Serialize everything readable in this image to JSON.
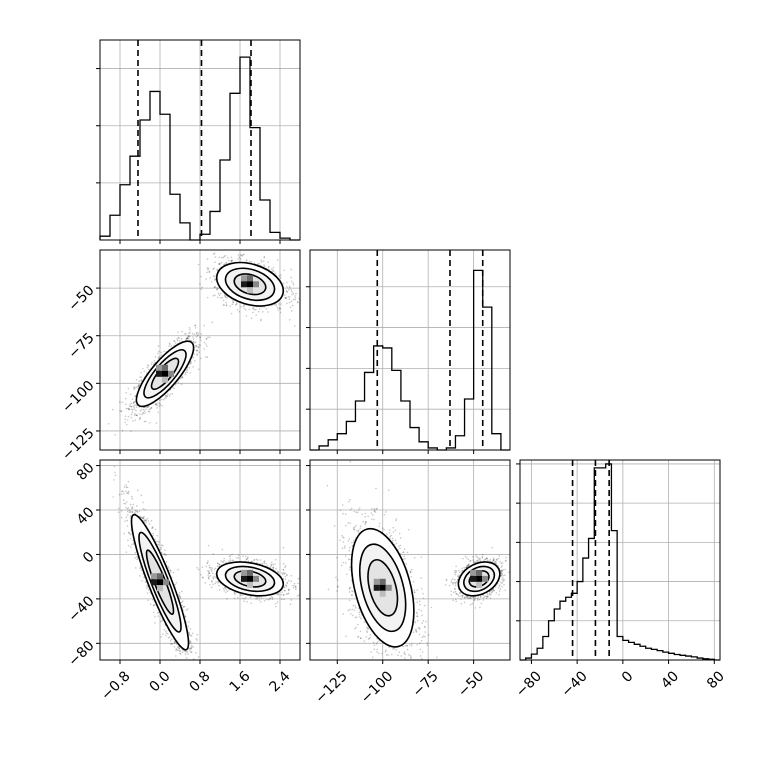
{
  "chart_data": {
    "type": "corner",
    "grid": true,
    "panels": [
      {
        "id": "hist-p0",
        "type": "histogram",
        "xlim": [
          -1.2,
          2.8
        ],
        "ylim": [
          0,
          0.105
        ],
        "bin_edges": [
          -1.2,
          -1.0,
          -0.8,
          -0.6,
          -0.4,
          -0.2,
          0.0,
          0.2,
          0.4,
          0.6,
          0.8,
          1.0,
          1.2,
          1.4,
          1.6,
          1.8,
          2.0,
          2.2,
          2.4,
          2.6,
          2.8
        ],
        "counts": [
          0.002,
          0.013,
          0.029,
          0.044,
          0.063,
          0.078,
          0.066,
          0.024,
          0.009,
          0.0,
          0.003,
          0.015,
          0.042,
          0.077,
          0.096,
          0.059,
          0.021,
          0.004,
          0.001,
          0.0
        ],
        "quantile_lines": [
          -0.44,
          0.83,
          1.82
        ]
      },
      {
        "id": "scatter-p0-p1",
        "type": "density",
        "xlim": [
          -1.2,
          2.8
        ],
        "ylim": [
          -135,
          -30
        ],
        "clusters": [
          {
            "center": [
              0.1,
              -95
            ],
            "spread": [
              0.3,
              9
            ],
            "corr": 0.8,
            "n": 1800,
            "contours": [
              {
                "scale": 1.0,
                "rx": 0.37,
                "ry": 12
              },
              {
                "scale": 0.7,
                "rx": 0.22,
                "ry": 6
              },
              {
                "scale": 0.3,
                "rx": 0.1,
                "ry": 3
              }
            ]
          },
          {
            "center": [
              1.8,
              -48
            ],
            "spread": [
              0.35,
              6
            ],
            "corr": -0.3,
            "n": 1500,
            "contours": [
              {
                "scale": 1.0,
                "rx": 0.5,
                "ry": 9
              },
              {
                "scale": 0.7,
                "rx": 0.37,
                "ry": 7
              },
              {
                "scale": 0.3,
                "rx": 0.22,
                "ry": 4.5
              }
            ]
          }
        ]
      },
      {
        "id": "hist-p1",
        "type": "histogram",
        "xlim": [
          -140,
          -30
        ],
        "ylim": [
          0,
          0.098
        ],
        "bin_edges": [
          -140,
          -135,
          -130,
          -125,
          -120,
          -115,
          -110,
          -105,
          -100,
          -95,
          -90,
          -85,
          -80,
          -75,
          -70,
          -65,
          -60,
          -55,
          -50,
          -45,
          -40,
          -35,
          -30
        ],
        "counts": [
          0.0,
          0.002,
          0.005,
          0.008,
          0.014,
          0.024,
          0.038,
          0.051,
          0.05,
          0.039,
          0.024,
          0.011,
          0.004,
          0.001,
          0.0,
          0.001,
          0.007,
          0.025,
          0.088,
          0.07,
          0.008,
          0.0
        ],
        "quantile_lines": [
          -103,
          -63,
          -45
        ]
      },
      {
        "id": "scatter-p0-p2",
        "type": "density",
        "xlim": [
          -1.2,
          2.8
        ],
        "ylim": [
          -95,
          85
        ],
        "clusters": [
          {
            "center": [
              0.0,
              -25
            ],
            "spread": [
              0.3,
              32
            ],
            "corr": -0.9,
            "n": 2000
          },
          {
            "center": [
              1.8,
              -22
            ],
            "spread": [
              0.35,
              8
            ],
            "corr": -0.3,
            "n": 1500
          }
        ]
      },
      {
        "id": "scatter-p1-p2",
        "type": "density",
        "xlim": [
          -140,
          -30
        ],
        "ylim": [
          -95,
          85
        ],
        "clusters": [
          {
            "center": [
              -100,
              -30
            ],
            "spread": [
              9,
              28
            ],
            "corr": -0.4,
            "n": 2000
          },
          {
            "center": [
              -47,
              -22
            ],
            "spread": [
              6,
              8
            ],
            "corr": 0.3,
            "n": 1500
          }
        ]
      },
      {
        "id": "hist-p2",
        "type": "histogram",
        "xlim": [
          -90,
          85
        ],
        "ylim": [
          0,
          0.051
        ],
        "bin_edges": [
          -90,
          -85,
          -80,
          -75,
          -70,
          -65,
          -60,
          -55,
          -50,
          -45,
          -40,
          -35,
          -30,
          -25,
          -20,
          -15,
          -10,
          -5,
          0,
          5,
          10,
          15,
          20,
          25,
          30,
          35,
          40,
          45,
          50,
          55,
          60,
          65,
          70,
          75,
          80,
          85
        ],
        "counts": [
          0.0,
          0.0005,
          0.0015,
          0.003,
          0.006,
          0.01,
          0.013,
          0.015,
          0.016,
          0.017,
          0.02,
          0.026,
          0.031,
          0.049,
          0.049,
          0.05,
          0.033,
          0.006,
          0.005,
          0.0045,
          0.004,
          0.0035,
          0.003,
          0.0027,
          0.0024,
          0.002,
          0.0017,
          0.0014,
          0.0012,
          0.001,
          0.0008,
          0.0005,
          0.0003,
          0.0002,
          0.0
        ],
        "quantile_lines": [
          -44,
          -24,
          -12
        ]
      }
    ],
    "axis_ticks": {
      "p0": [
        "−0.8",
        "0.0",
        "0.8",
        "1.6",
        "2.4"
      ],
      "p1": [
        "−125",
        "−100",
        "−75",
        "−50"
      ],
      "p2": [
        "−80",
        "−40",
        "0",
        "40",
        "80"
      ]
    }
  }
}
